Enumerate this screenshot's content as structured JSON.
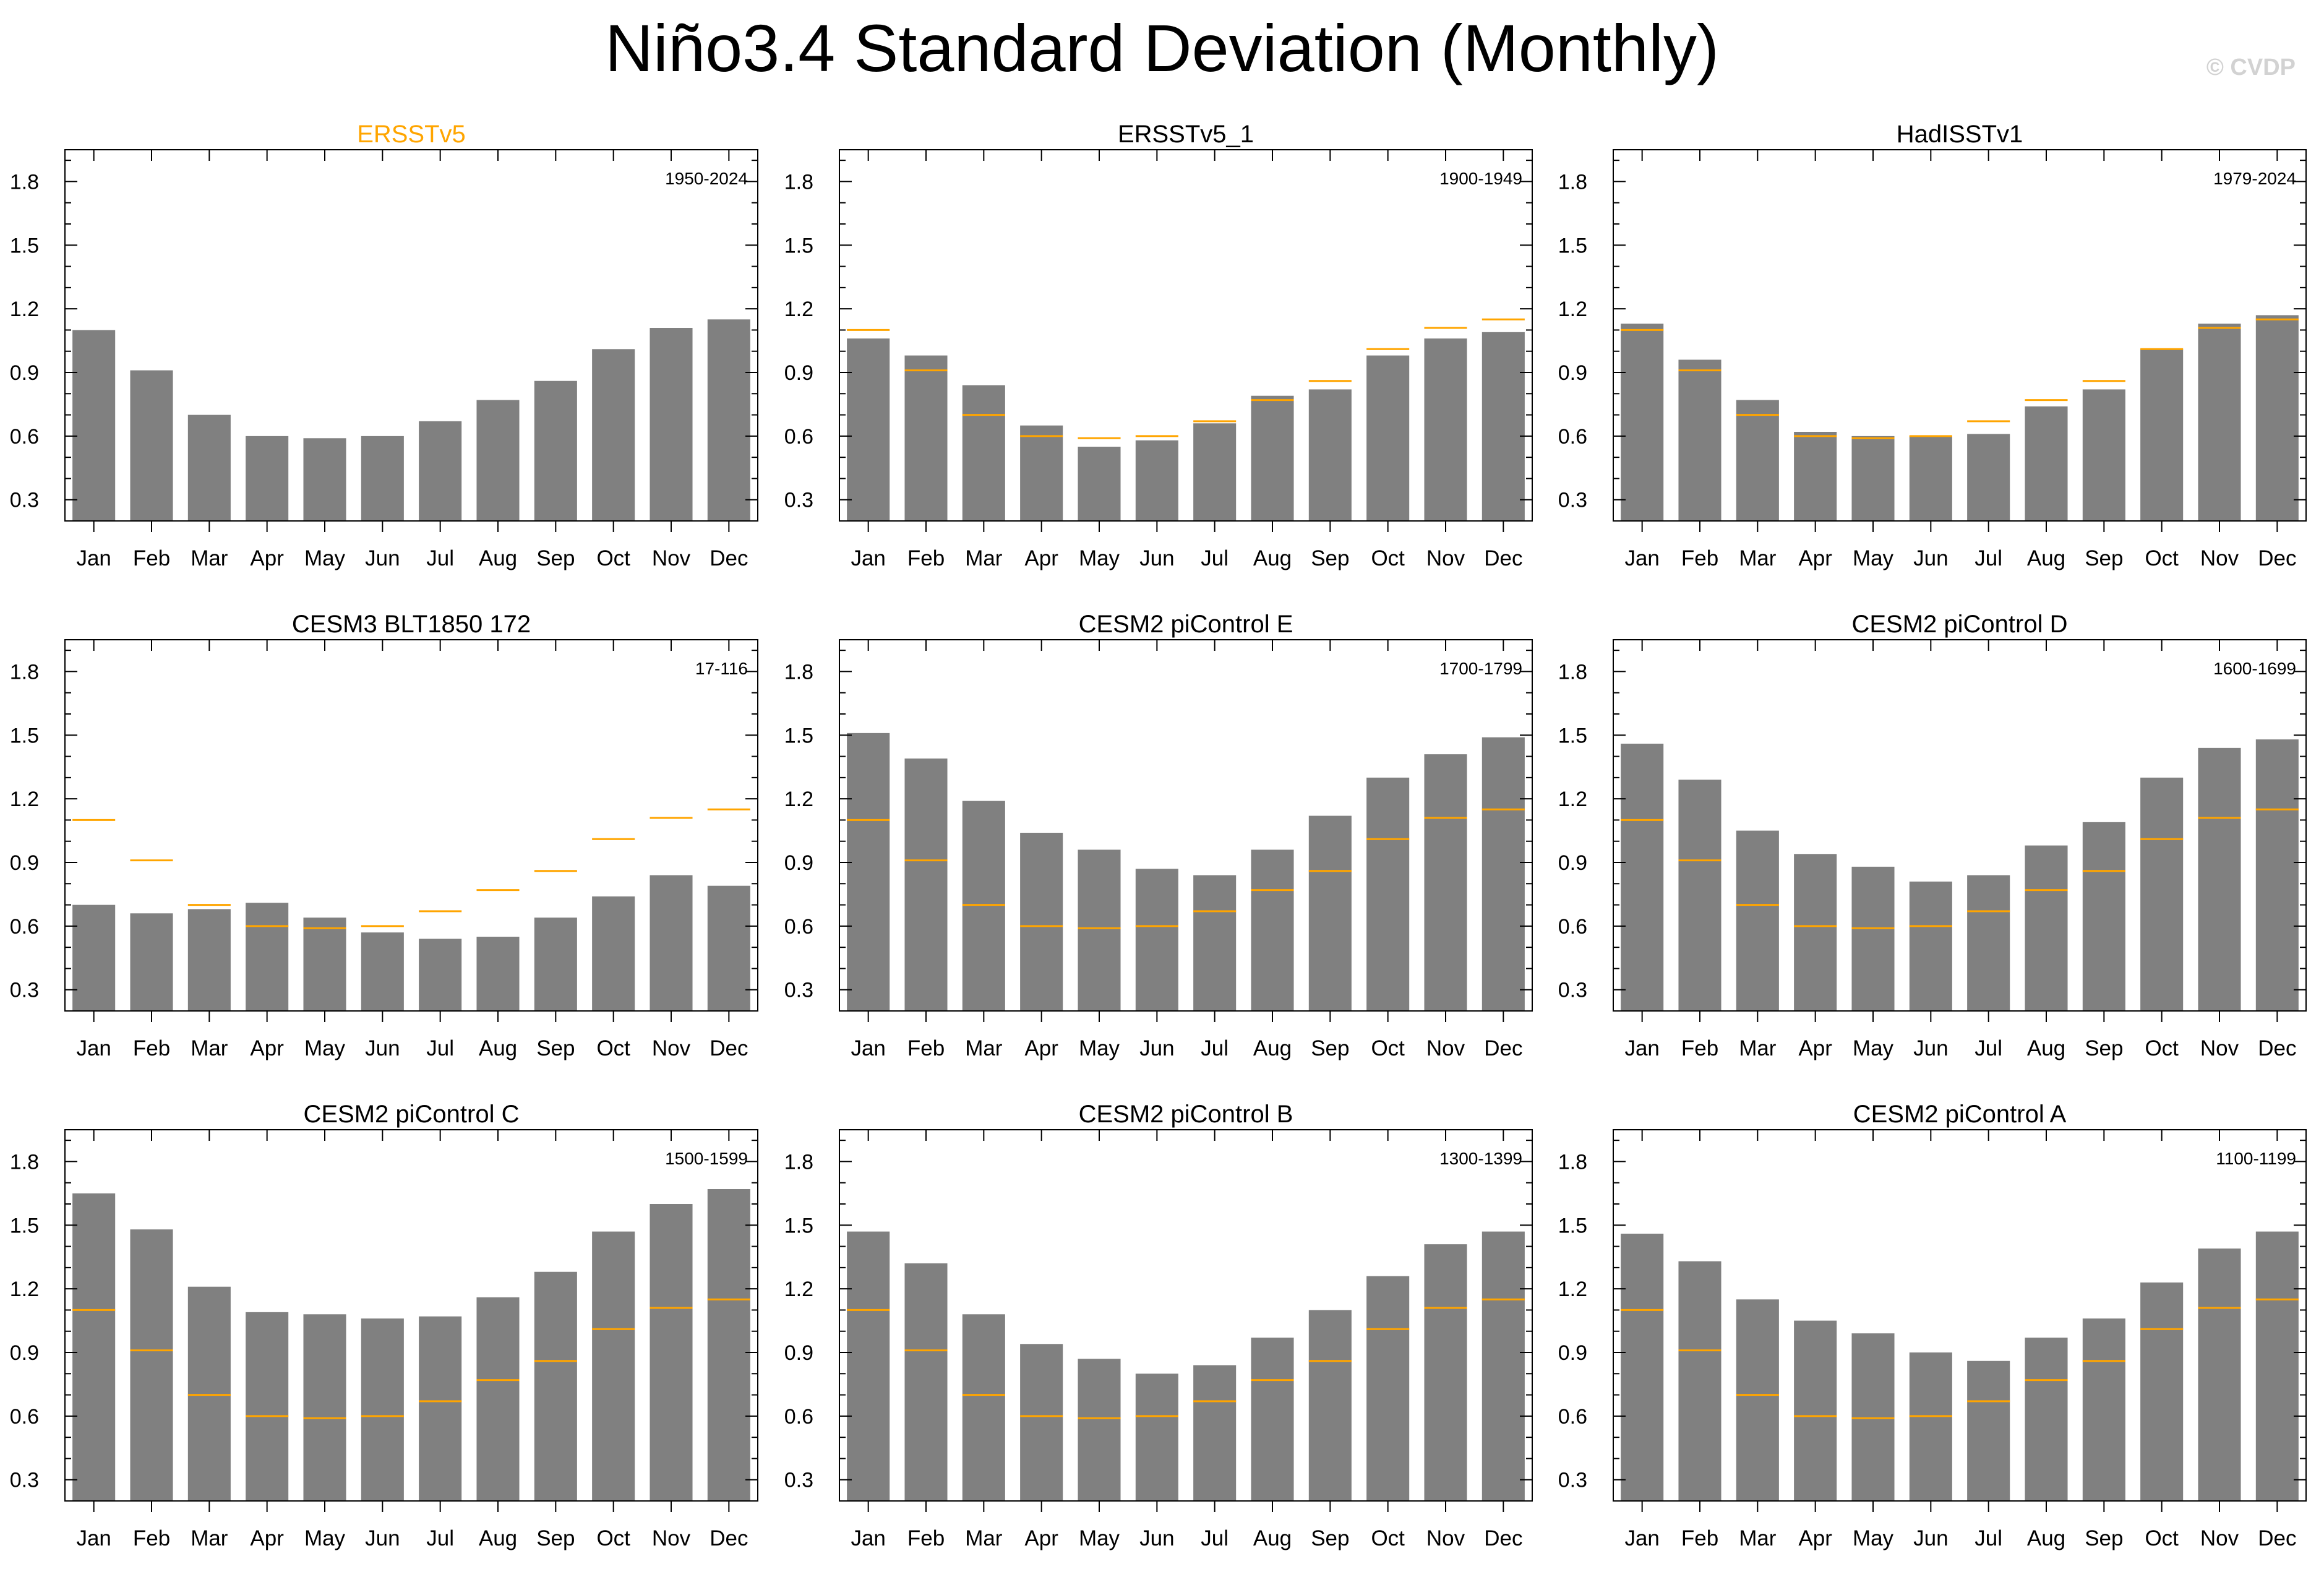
{
  "title": "Niño3.4 Standard Deviation (Monthly)",
  "watermark": "© CVDP",
  "colors": {
    "bar": "#808080",
    "reference_line": "#ffa500",
    "reference_title": "#ffa500",
    "axis": "#000000"
  },
  "chart_data": [
    {
      "type": "bar",
      "title": "ERSSTv5",
      "is_reference": true,
      "period": "1950-2024",
      "categories": [
        "Jan",
        "Feb",
        "Mar",
        "Apr",
        "May",
        "Jun",
        "Jul",
        "Aug",
        "Sep",
        "Oct",
        "Nov",
        "Dec"
      ],
      "values": [
        1.1,
        0.91,
        0.7,
        0.6,
        0.59,
        0.6,
        0.67,
        0.77,
        0.86,
        1.01,
        1.11,
        1.15
      ],
      "ylim": [
        0.2,
        1.95
      ],
      "yticks": [
        "0.3",
        "0.6",
        "0.9",
        "1.2",
        "1.5",
        "1.8"
      ]
    },
    {
      "type": "bar",
      "title": "ERSSTv5_1",
      "is_reference": false,
      "period": "1900-1949",
      "categories": [
        "Jan",
        "Feb",
        "Mar",
        "Apr",
        "May",
        "Jun",
        "Jul",
        "Aug",
        "Sep",
        "Oct",
        "Nov",
        "Dec"
      ],
      "values": [
        1.06,
        0.98,
        0.84,
        0.65,
        0.55,
        0.58,
        0.66,
        0.79,
        0.82,
        0.98,
        1.06,
        1.09
      ],
      "ylim": [
        0.2,
        1.95
      ],
      "yticks": [
        "0.3",
        "0.6",
        "0.9",
        "1.2",
        "1.5",
        "1.8"
      ]
    },
    {
      "type": "bar",
      "title": "HadISSTv1",
      "is_reference": false,
      "period": "1979-2024",
      "categories": [
        "Jan",
        "Feb",
        "Mar",
        "Apr",
        "May",
        "Jun",
        "Jul",
        "Aug",
        "Sep",
        "Oct",
        "Nov",
        "Dec"
      ],
      "values": [
        1.13,
        0.96,
        0.77,
        0.62,
        0.6,
        0.6,
        0.61,
        0.74,
        0.82,
        1.01,
        1.13,
        1.17
      ],
      "ylim": [
        0.2,
        1.95
      ],
      "yticks": [
        "0.3",
        "0.6",
        "0.9",
        "1.2",
        "1.5",
        "1.8"
      ]
    },
    {
      "type": "bar",
      "title": "CESM3 BLT1850 172",
      "is_reference": false,
      "period": "17-116",
      "categories": [
        "Jan",
        "Feb",
        "Mar",
        "Apr",
        "May",
        "Jun",
        "Jul",
        "Aug",
        "Sep",
        "Oct",
        "Nov",
        "Dec"
      ],
      "values": [
        0.7,
        0.66,
        0.68,
        0.71,
        0.64,
        0.57,
        0.54,
        0.55,
        0.64,
        0.74,
        0.84,
        0.79
      ],
      "ylim": [
        0.2,
        1.95
      ],
      "yticks": [
        "0.3",
        "0.6",
        "0.9",
        "1.2",
        "1.5",
        "1.8"
      ]
    },
    {
      "type": "bar",
      "title": "CESM2 piControl E",
      "is_reference": false,
      "period": "1700-1799",
      "categories": [
        "Jan",
        "Feb",
        "Mar",
        "Apr",
        "May",
        "Jun",
        "Jul",
        "Aug",
        "Sep",
        "Oct",
        "Nov",
        "Dec"
      ],
      "values": [
        1.51,
        1.39,
        1.19,
        1.04,
        0.96,
        0.87,
        0.84,
        0.96,
        1.12,
        1.3,
        1.41,
        1.49
      ],
      "ylim": [
        0.2,
        1.95
      ],
      "yticks": [
        "0.3",
        "0.6",
        "0.9",
        "1.2",
        "1.5",
        "1.8"
      ]
    },
    {
      "type": "bar",
      "title": "CESM2 piControl D",
      "is_reference": false,
      "period": "1600-1699",
      "categories": [
        "Jan",
        "Feb",
        "Mar",
        "Apr",
        "May",
        "Jun",
        "Jul",
        "Aug",
        "Sep",
        "Oct",
        "Nov",
        "Dec"
      ],
      "values": [
        1.46,
        1.29,
        1.05,
        0.94,
        0.88,
        0.81,
        0.84,
        0.98,
        1.09,
        1.3,
        1.44,
        1.48
      ],
      "ylim": [
        0.2,
        1.95
      ],
      "yticks": [
        "0.3",
        "0.6",
        "0.9",
        "1.2",
        "1.5",
        "1.8"
      ]
    },
    {
      "type": "bar",
      "title": "CESM2 piControl C",
      "is_reference": false,
      "period": "1500-1599",
      "categories": [
        "Jan",
        "Feb",
        "Mar",
        "Apr",
        "May",
        "Jun",
        "Jul",
        "Aug",
        "Sep",
        "Oct",
        "Nov",
        "Dec"
      ],
      "values": [
        1.65,
        1.48,
        1.21,
        1.09,
        1.08,
        1.06,
        1.07,
        1.16,
        1.28,
        1.47,
        1.6,
        1.67
      ],
      "ylim": [
        0.2,
        1.95
      ],
      "yticks": [
        "0.3",
        "0.6",
        "0.9",
        "1.2",
        "1.5",
        "1.8"
      ]
    },
    {
      "type": "bar",
      "title": "CESM2 piControl B",
      "is_reference": false,
      "period": "1300-1399",
      "categories": [
        "Jan",
        "Feb",
        "Mar",
        "Apr",
        "May",
        "Jun",
        "Jul",
        "Aug",
        "Sep",
        "Oct",
        "Nov",
        "Dec"
      ],
      "values": [
        1.47,
        1.32,
        1.08,
        0.94,
        0.87,
        0.8,
        0.84,
        0.97,
        1.1,
        1.26,
        1.41,
        1.47
      ],
      "ylim": [
        0.2,
        1.95
      ],
      "yticks": [
        "0.3",
        "0.6",
        "0.9",
        "1.2",
        "1.5",
        "1.8"
      ]
    },
    {
      "type": "bar",
      "title": "CESM2 piControl A",
      "is_reference": false,
      "period": "1100-1199",
      "categories": [
        "Jan",
        "Feb",
        "Mar",
        "Apr",
        "May",
        "Jun",
        "Jul",
        "Aug",
        "Sep",
        "Oct",
        "Nov",
        "Dec"
      ],
      "values": [
        1.46,
        1.33,
        1.15,
        1.05,
        0.99,
        0.9,
        0.86,
        0.97,
        1.06,
        1.23,
        1.39,
        1.47
      ],
      "ylim": [
        0.2,
        1.95
      ],
      "yticks": [
        "0.3",
        "0.6",
        "0.9",
        "1.2",
        "1.5",
        "1.8"
      ]
    }
  ]
}
